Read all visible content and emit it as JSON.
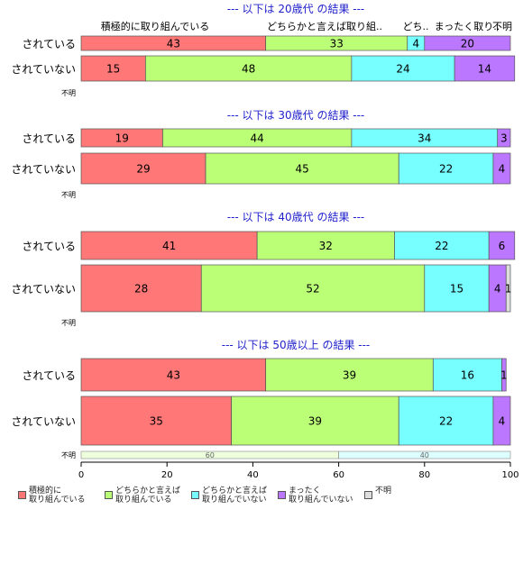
{
  "chart_data": {
    "type": "bar",
    "orientation": "horizontal",
    "stacked": "percent",
    "categories_labels": [
      "積極的に取り組んでいる",
      "どちらかと言えば取り組..",
      "どち..",
      "まったく取り..",
      "不明"
    ],
    "legend": [
      {
        "label": "積極的に\n取り組んでいる",
        "color": "#ff7777"
      },
      {
        "label": "どちらかと言えば\n取り組んでいる",
        "color": "#bbff77"
      },
      {
        "label": "どちらかと言えば\n取り組んでいない",
        "color": "#77ffff"
      },
      {
        "label": "まったく\n取り組んでいない",
        "color": "#bb77ff"
      },
      {
        "label": "不明",
        "color": "#dddddd"
      }
    ],
    "xlim": [
      0,
      100
    ],
    "xticks": [
      0,
      20,
      40,
      60,
      80,
      100
    ],
    "groups": [
      {
        "title": "--- 以下は 20歳代 の結果 ---",
        "rows": [
          {
            "label": "されている",
            "values": [
              43,
              33,
              4,
              20,
              0
            ]
          },
          {
            "label": "されていない",
            "values": [
              15,
              48,
              24,
              14,
              0
            ]
          }
        ],
        "unknown_label": "不明",
        "unknown_values": [
          0,
          0,
          0,
          0,
          0
        ]
      },
      {
        "title": "--- 以下は 30歳代 の結果 ---",
        "rows": [
          {
            "label": "されている",
            "values": [
              19,
              44,
              34,
              3,
              0
            ]
          },
          {
            "label": "されていない",
            "values": [
              29,
              45,
              22,
              4,
              0
            ]
          }
        ],
        "unknown_label": "不明",
        "unknown_values": [
          0,
          0,
          0,
          0,
          0
        ]
      },
      {
        "title": "--- 以下は 40歳代 の結果 ---",
        "rows": [
          {
            "label": "されている",
            "values": [
              41,
              32,
              22,
              6,
              0
            ]
          },
          {
            "label": "されていない",
            "values": [
              28,
              52,
              15,
              4,
              1
            ]
          }
        ],
        "unknown_label": "不明",
        "unknown_values": [
          0,
          0,
          0,
          0,
          0
        ]
      },
      {
        "title": "--- 以下は 50歳以上 の結果 ---",
        "rows": [
          {
            "label": "されている",
            "values": [
              43,
              39,
              16,
              1,
              0
            ]
          },
          {
            "label": "されていない",
            "values": [
              35,
              39,
              22,
              4,
              0
            ]
          }
        ],
        "unknown_label": "不明",
        "unknown_values": [
          0,
          60,
          40,
          0,
          0
        ]
      }
    ]
  }
}
